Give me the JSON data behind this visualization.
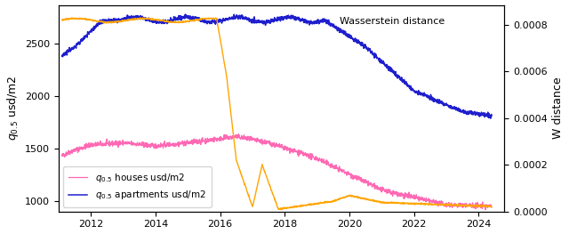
{
  "ylabel_left": "$q_{0.5}$ usd/m2",
  "ylabel_right": "W distance",
  "legend_houses": "$q_{0.5}$ houses usd/m2",
  "legend_apartments": "$q_{0.5}$ apartments usd/m2",
  "wasserstein_label": "Wasserstein distance",
  "color_houses": "#ff69b4",
  "color_apartments": "#1f1fcd",
  "color_wasserstein": "#ffa500",
  "ylim_left": [
    900,
    2870
  ],
  "ylim_right": [
    0.0,
    0.000886
  ],
  "xlim": [
    2011.0,
    2024.8
  ],
  "xticks": [
    2012,
    2014,
    2016,
    2018,
    2020,
    2022,
    2024
  ],
  "yticks_left": [
    1000,
    1500,
    2000,
    2500
  ],
  "yticks_right": [
    0.0,
    0.0002,
    0.0004,
    0.0006,
    0.0008
  ],
  "figsize": [
    6.4,
    2.63
  ],
  "dpi": 100
}
